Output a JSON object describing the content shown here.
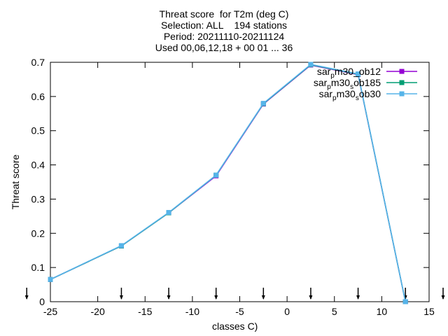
{
  "chart_data": {
    "type": "line",
    "title_lines": [
      "Threat score  for T2m (deg C)",
      "Selection: ALL    194 stations",
      "Period: 20211110-20211124",
      "Used 00,06,12,18 + 00 01 ... 36"
    ],
    "xlabel": "classes C)",
    "ylabel": "Threat score",
    "xlim": [
      -25,
      15
    ],
    "ylim": [
      0,
      0.7
    ],
    "xticks": [
      -25,
      -20,
      -15,
      -10,
      -5,
      0,
      5,
      10,
      15
    ],
    "yticks": [
      0,
      0.1,
      0.2,
      0.3,
      0.4,
      0.5,
      0.6,
      0.7
    ],
    "xtick_labels": [
      "-25",
      "-20",
      "-15",
      "-10",
      "-5",
      "0",
      "5",
      "10",
      "15"
    ],
    "ytick_labels": [
      "0",
      "0.1",
      "0.2",
      "0.3",
      "0.4",
      "0.5",
      "0.6",
      "0.7"
    ],
    "arrow_markers_x": [
      -27.5,
      -17.5,
      -12.5,
      -7.5,
      -2.5,
      2.5,
      7.5,
      12.5,
      17.5
    ],
    "grid": false,
    "legend_position": "top-right",
    "x": [
      -25,
      -17.5,
      -12.5,
      -7.5,
      -2.5,
      2.5,
      7.5,
      12.5
    ],
    "series": [
      {
        "name": "sar_pm30_ob12",
        "label_parts": [
          [
            "sar",
            ""
          ],
          [
            "p",
            "sub"
          ],
          [
            "m30_ob12",
            ""
          ]
        ],
        "color": "#9400d3",
        "values": [
          0.065,
          0.163,
          0.26,
          0.368,
          0.578,
          0.692,
          0.664,
          0.0
        ]
      },
      {
        "name": "sar_pm30_sob185",
        "label_parts": [
          [
            "sar",
            ""
          ],
          [
            "p",
            "sub"
          ],
          [
            "m30",
            ""
          ],
          [
            "s",
            "sub"
          ],
          [
            "ob185",
            ""
          ]
        ],
        "color": "#009e73",
        "values": [
          0.065,
          0.163,
          0.26,
          0.37,
          0.579,
          0.693,
          0.665,
          0.0
        ]
      },
      {
        "name": "sar_pm30_sob30",
        "label_parts": [
          [
            "sar",
            ""
          ],
          [
            "p",
            "sub"
          ],
          [
            "m30",
            ""
          ],
          [
            "s",
            "sub"
          ],
          [
            "ob30",
            ""
          ]
        ],
        "color": "#56b4e9",
        "values": [
          0.065,
          0.164,
          0.261,
          0.37,
          0.58,
          0.694,
          0.666,
          0.0
        ]
      }
    ]
  }
}
